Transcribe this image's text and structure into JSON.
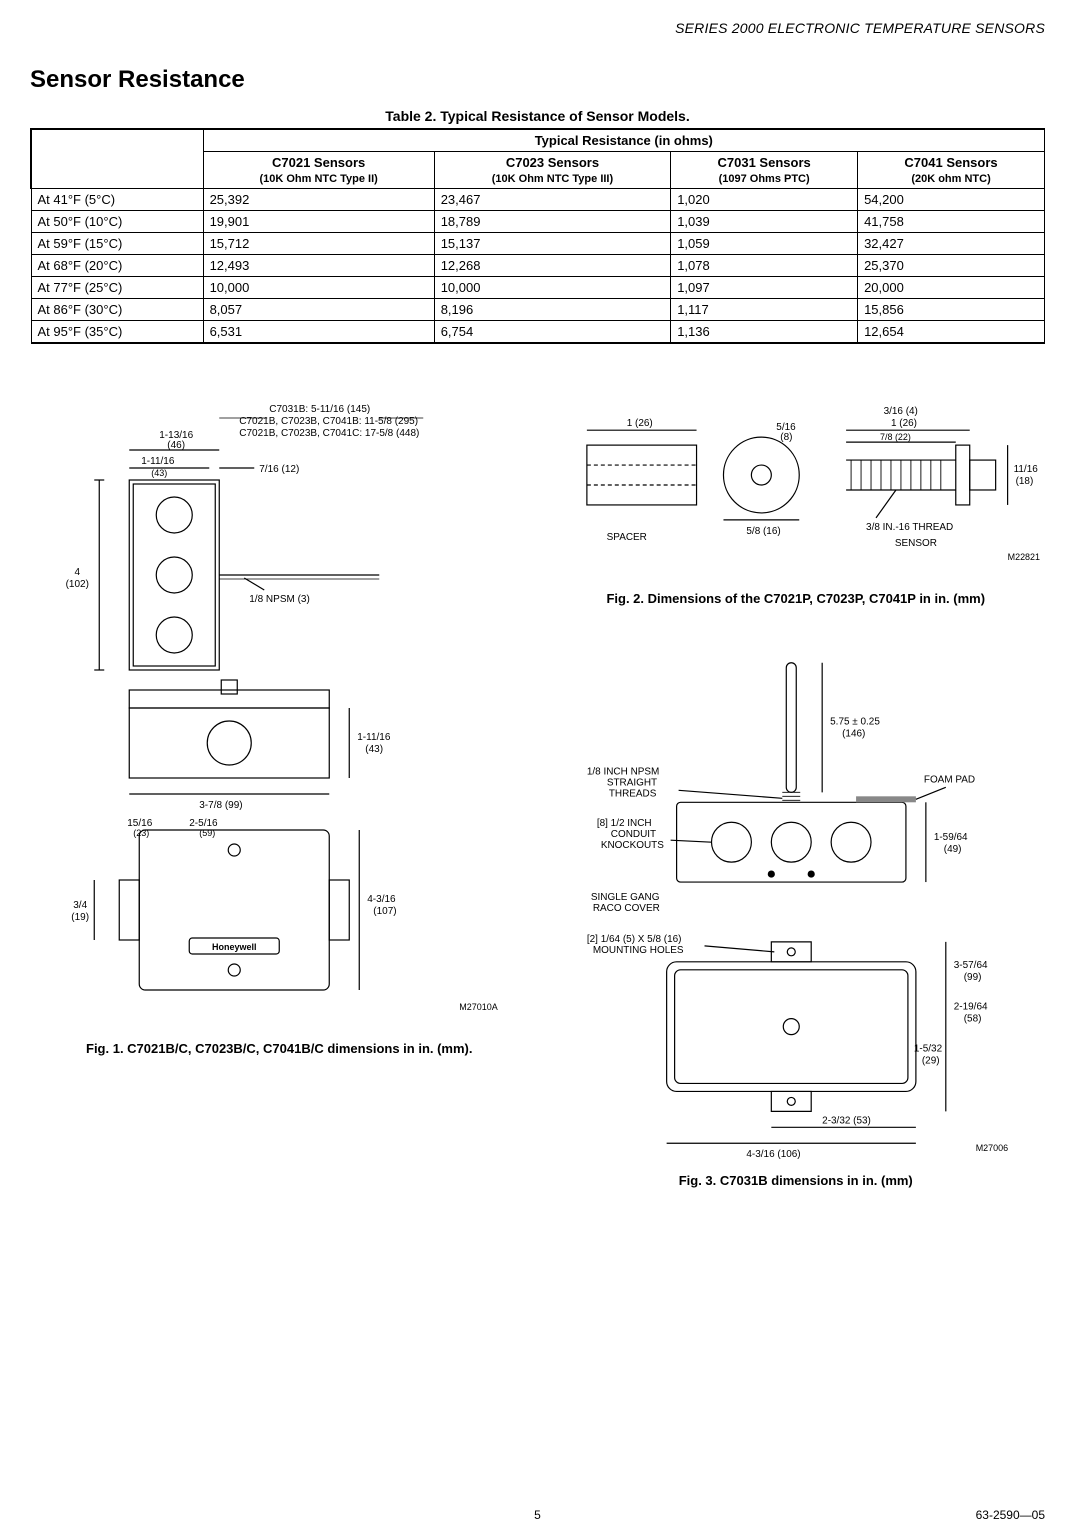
{
  "doc": {
    "running_header": "SERIES 2000 ELECTRONIC TEMPERATURE SENSORS",
    "section_title": "Sensor Resistance",
    "page_number": "5",
    "doc_number": "63-2590—05"
  },
  "table": {
    "caption": "Table 2. Typical Resistance of Sensor Models.",
    "header_span": "Typical Resistance (in ohms)",
    "columns": [
      {
        "l1": "C7021 Sensors",
        "l2": "(10K Ohm NTC Type II)"
      },
      {
        "l1": "C7023 Sensors",
        "l2": "(10K Ohm NTC Type III)"
      },
      {
        "l1": "C7031 Sensors",
        "l2": "(1097 Ohms PTC)"
      },
      {
        "l1": "C7041 Sensors",
        "l2": "(20K ohm NTC)"
      }
    ],
    "rows": [
      {
        "label": "At 41°F (5°C)",
        "c": [
          "25,392",
          "23,467",
          "1,020",
          "54,200"
        ]
      },
      {
        "label": "At 50°F (10°C)",
        "c": [
          "19,901",
          "18,789",
          "1,039",
          "41,758"
        ]
      },
      {
        "label": "At 59°F (15°C)",
        "c": [
          "15,712",
          "15,137",
          "1,059",
          "32,427"
        ]
      },
      {
        "label": "At 68°F (20°C)",
        "c": [
          "12,493",
          "12,268",
          "1,078",
          "25,370"
        ]
      },
      {
        "label": "At 77°F (25°C)",
        "c": [
          "10,000",
          "10,000",
          "1,097",
          "20,000"
        ]
      },
      {
        "label": "At 86°F (30°C)",
        "c": [
          "8,057",
          "8,196",
          "1,117",
          "15,856"
        ]
      },
      {
        "label": "At 95°F (35°C)",
        "c": [
          "6,531",
          "6,754",
          "1,136",
          "12,654"
        ]
      }
    ]
  },
  "fig1": {
    "caption": "Fig. 1. C7021B/C, C7023B/C, C7041B/C dimensions in in. (mm).",
    "drawing_id": "M27010A",
    "callouts": {
      "top_line1": "C7031B: 5-11/16 (145)",
      "top_line2": "C7021B, C7023B, C7041B: 11-5/8 (295)",
      "top_line3": "C7021B, C7023B, C7041C: 17-5/8 (448)",
      "d1": "1-13/16 (46)",
      "d2": "1-11/16 (43)",
      "d3": "7/16 (12)",
      "d4": "4 (102)",
      "npsm": "1/8 NPSM (3)",
      "d5": "1-11/16 (43)",
      "d6": "3-7/8 (99)",
      "d7": "15/16 (23)",
      "d8": "2-5/16 (59)",
      "d9": "3/4 (19)",
      "d10": "4-3/16 (107)",
      "logo": "Honeywell"
    }
  },
  "fig2": {
    "caption": "Fig. 2. Dimensions of the C7021P, C7023P, C7041P in in. (mm)",
    "drawing_id": "M22821",
    "labels": {
      "spacer": "SPACER",
      "sensor": "SENSOR",
      "thread": "3/8 IN.-16 THREAD"
    },
    "dims": {
      "a": "1 (26)",
      "b": "5/16 (8)",
      "c": "5/8 (16)",
      "d": "3/16 (4)",
      "e": "1 (26)",
      "f": "7/8 (22)",
      "g": "11/16 (18)"
    }
  },
  "fig3": {
    "caption": "Fig. 3. C7031B dimensions in in. (mm)",
    "drawing_id": "M27006",
    "labels": {
      "probe": "5.75 ± 0.25 (146)",
      "threads": "1/8 INCH NPSM STRAIGHT THREADS",
      "foam": "FOAM PAD",
      "knockouts": "[8] 1/2 INCH CONDUIT KNOCKOUTS",
      "gang": "SINGLE GANG RACO COVER",
      "holes": "[2] 1/64 (5) X 5/8 (16) MOUNTING HOLES"
    },
    "dims": {
      "h1": "1-59/64 (49)",
      "h2": "3-57/64 (99)",
      "h3": "2-19/64 (58)",
      "h4": "1-5/32 (29)",
      "h5": "2-3/32 (53)",
      "h6": "4-3/16 (106)"
    }
  }
}
